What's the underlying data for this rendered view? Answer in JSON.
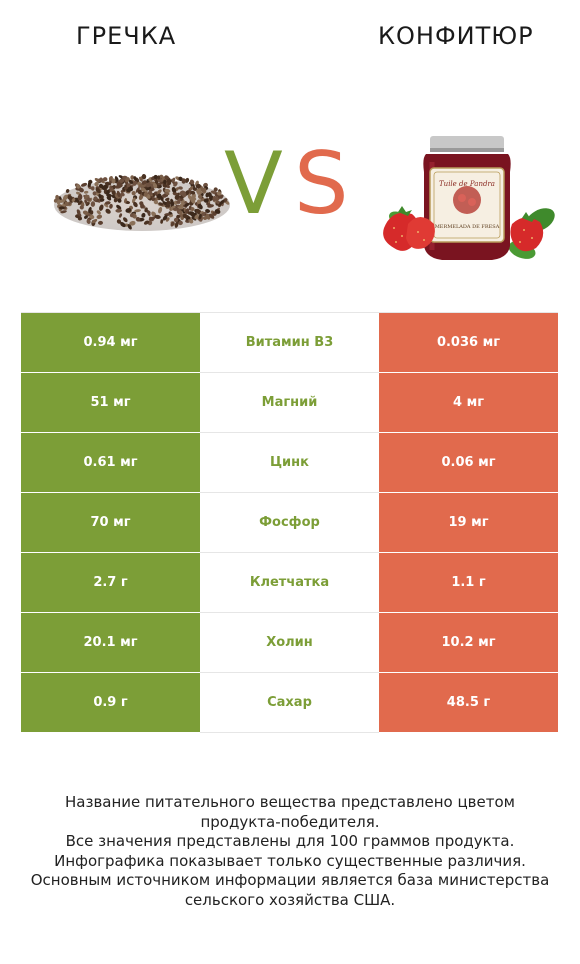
{
  "header": {
    "left_title": "ГРЕЧКА",
    "right_title": "КОНФИТЮР",
    "vs_v": "V",
    "vs_s": "S"
  },
  "colors": {
    "left": "#7c9e37",
    "right": "#e16a4d"
  },
  "jar_label": {
    "brand": "Tuile de Pandra",
    "name": "MERMELADA DE FRESA"
  },
  "rows": [
    {
      "left": "0.94 мг",
      "nutrient": "Витамин B3",
      "right": "0.036 мг",
      "winner": "left"
    },
    {
      "left": "51 мг",
      "nutrient": "Магний",
      "right": "4 мг",
      "winner": "left"
    },
    {
      "left": "0.61 мг",
      "nutrient": "Цинк",
      "right": "0.06 мг",
      "winner": "left"
    },
    {
      "left": "70 мг",
      "nutrient": "Фосфор",
      "right": "19 мг",
      "winner": "left"
    },
    {
      "left": "2.7 г",
      "nutrient": "Клетчатка",
      "right": "1.1 г",
      "winner": "left"
    },
    {
      "left": "20.1 мг",
      "nutrient": "Холин",
      "right": "10.2 мг",
      "winner": "left"
    },
    {
      "left": "0.9 г",
      "nutrient": "Сахар",
      "right": "48.5 г",
      "winner": "left"
    }
  ],
  "footer": {
    "lines": [
      "Название питательного вещества представлено цветом",
      "продукта-победителя.",
      "Все значения представлены для 100 граммов продукта.",
      "Инфографика показывает только существенные различия.",
      "Основным источником информации является база министерства",
      "сельского хозяйства США."
    ]
  }
}
